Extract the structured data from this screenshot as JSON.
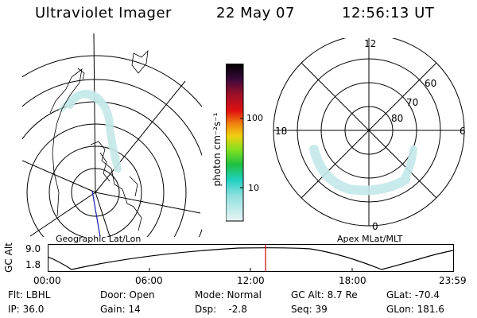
{
  "header": {
    "title": "Ultraviolet Imager",
    "date": "22 May 07",
    "time": "12:56:13 UT"
  },
  "left_panel": {
    "label": "Geographic Lat/Lon"
  },
  "right_panel": {
    "label": "Apex MLat/MLT",
    "mlt_labels": {
      "top": "12",
      "bottom": "0",
      "left": "18",
      "right": "6"
    },
    "mlat_labels": [
      "60",
      "70",
      "80"
    ]
  },
  "colorbar": {
    "unit_label": "photon cm⁻²s⁻¹",
    "tick_labels": [
      "100",
      "10"
    ]
  },
  "altitude_strip": {
    "axis_label": "GC Alt",
    "tick_top": "9.0",
    "tick_bottom": "1.8",
    "time_ticks": [
      "00:00",
      "06:00",
      "12:00",
      "18:00",
      "23:59"
    ],
    "marker_time": "12:56"
  },
  "info": {
    "row1": {
      "flt": "Flt: LBHL",
      "door": "Door: Open",
      "mode": "Mode: Normal",
      "gcalt": "GC Alt: 8.7 Re",
      "glat": "GLat: -70.4"
    },
    "row2": {
      "ip": "IP: 36.0",
      "gain": "Gain: 14",
      "dsp": "Dsp:    -2.8",
      "seq": "Seq: 39",
      "glon": "GLon: 181.6"
    }
  },
  "colors": {
    "background": "#ffffff",
    "lines": "#000000",
    "aurora": "#bfe6e6",
    "marker": "#cc0000",
    "track": "#1a1aa8"
  }
}
